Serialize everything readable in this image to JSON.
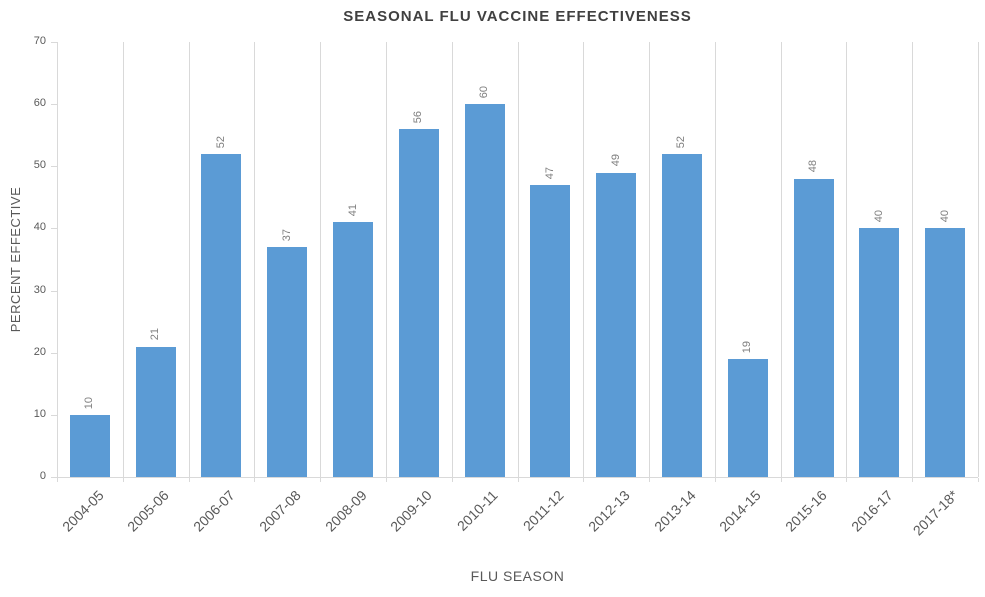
{
  "chart_data": {
    "type": "bar",
    "title": "SEASONAL FLU VACCINE EFFECTIVENESS",
    "xlabel": "FLU SEASON",
    "ylabel": "PERCENT EFFECTIVE",
    "categories": [
      "2004-05",
      "2005-06",
      "2006-07",
      "2007-08",
      "2008-09",
      "2009-10",
      "2010-11",
      "2011-12",
      "2012-13",
      "2013-14",
      "2014-15",
      "2015-16",
      "2016-17",
      "2017-18*"
    ],
    "values": [
      10,
      21,
      52,
      37,
      41,
      56,
      60,
      47,
      49,
      52,
      19,
      48,
      40,
      40
    ],
    "data_labels": [
      "10",
      "21",
      "52",
      "37",
      "41",
      "56",
      "60",
      "47",
      "49",
      "52",
      "19",
      "48",
      "40",
      "40"
    ],
    "ylim": [
      0,
      70
    ],
    "yticks": [
      0,
      10,
      20,
      30,
      40,
      50,
      60,
      70
    ],
    "grid": "vertical category gridlines only",
    "legend": "none",
    "data_label_rotation_deg": -90,
    "x_tick_rotation_deg": -45
  },
  "colors": {
    "bar": "#5b9bd5",
    "gridline": "#d9d9d9",
    "title_text": "#404040",
    "axis_text": "#595959",
    "data_label_text": "#7f7f7f"
  }
}
